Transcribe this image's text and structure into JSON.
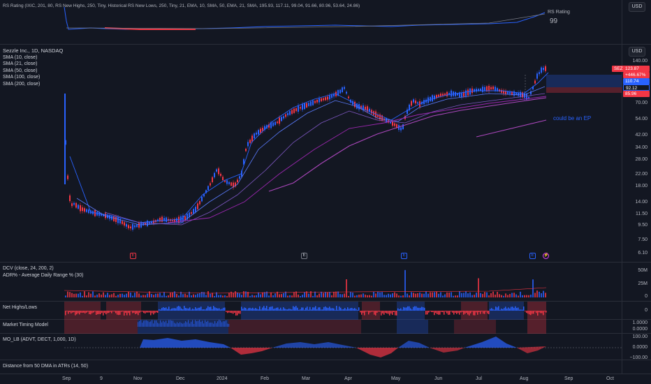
{
  "rs_pane": {
    "legend": "RS Rating (IXIC, 201, 80, RS New Highs, 250, Tiny, Historical RS New Lows, 250, Tiny, 21, EMA, 10, SMA, 50, EMA, 21, SMA, 195.93, 117.11, 99.04, 91.66, 80.96, 53.64, 24.86)",
    "rating_label": "RS Rating",
    "rating_value": "99",
    "currency": "USD"
  },
  "price_pane": {
    "title": "Sezzle Inc., 1D, NASDAQ",
    "indicators": [
      "SMA (10, close)",
      "SMA (21, close)",
      "SMA (50, close)",
      "SMA (100, close)",
      "SMA (200, close)"
    ],
    "currency": "USD",
    "ticks": [
      "140.00",
      "70.00",
      "54.00",
      "42.00",
      "34.00",
      "28.00",
      "22.00",
      "18.00",
      "14.00",
      "11.50",
      "9.50",
      "7.50",
      "6.10"
    ],
    "ticker_tag": "SEZL",
    "price_tag": "123.87",
    "change_tag": "+446.67%",
    "tag_110": "110.74",
    "tag_92": "92.12",
    "tag_85": "85.96",
    "annotation": "could be an EP",
    "earnings_markers": [
      "E",
      "E",
      "E",
      "E"
    ],
    "split_marker": "⚡"
  },
  "dcv_pane": {
    "legend1": "DCV (close, 24, 200, 2)",
    "legend2": "ADR% - Average Daily Range % (30)",
    "ticks": [
      "50M",
      "25M",
      "0"
    ]
  },
  "nhl_pane": {
    "legend": "Net Highs/Lows",
    "ticks": [
      "0"
    ]
  },
  "mtm_pane": {
    "legend": "Market Timing Model",
    "ticks": [
      "1.0000",
      "0.0000"
    ]
  },
  "mo_pane": {
    "legend": "MO_LB (ADVT, DECT, 1,000, 1D)",
    "ticks": [
      "100.00",
      "0.0000",
      "−100.00"
    ]
  },
  "dist_pane": {
    "legend": "Distance from 50 DMA in ATRs (14, 50)"
  },
  "time_axis": [
    "Sep",
    "9",
    "Nov",
    "Dec",
    "2024",
    "Feb",
    "Mar",
    "Apr",
    "May",
    "Jun",
    "Jul",
    "Aug",
    "Sep",
    "Oct"
  ],
  "colors": {
    "up": "#2962ff",
    "down": "#f23645",
    "bg": "#131722",
    "sma_purple": "#9c27b0"
  }
}
